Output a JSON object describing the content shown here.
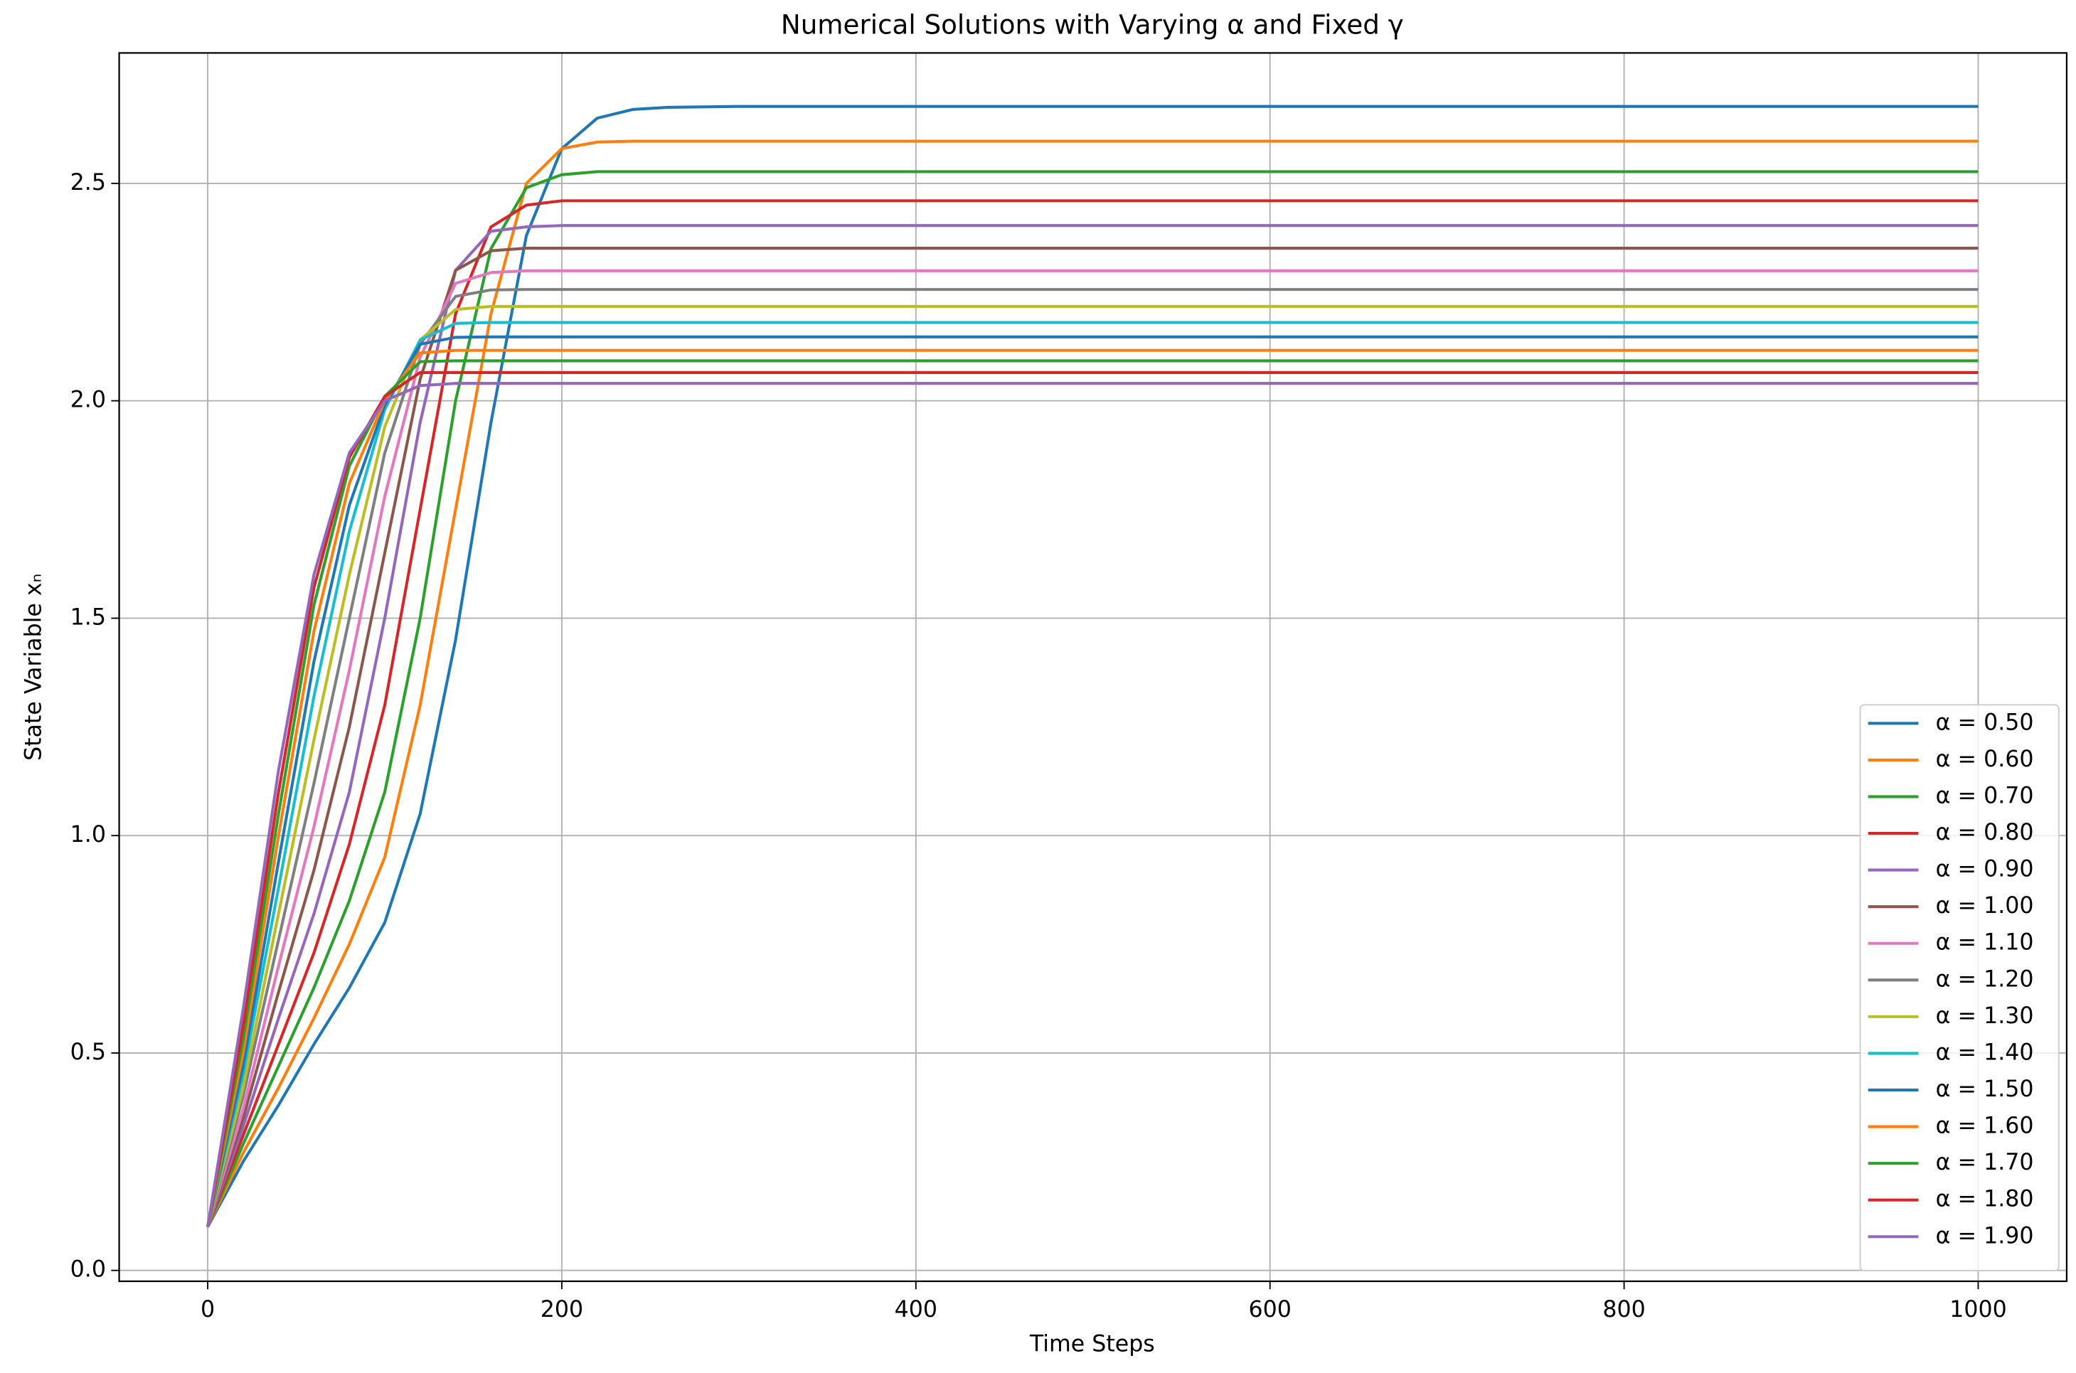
{
  "chart_data": {
    "type": "line",
    "title": "Numerical Solutions with Varying α and Fixed γ",
    "xlabel": "Time Steps",
    "ylabel": "State Variable xₙ",
    "x": [
      0,
      20,
      40,
      60,
      80,
      100,
      120,
      140,
      160,
      180,
      200,
      220,
      240,
      260,
      300,
      1000
    ],
    "series": [
      {
        "name": "α = 0.50",
        "color": "#1f77b4",
        "values": [
          0.1,
          0.25,
          0.38,
          0.52,
          0.65,
          0.8,
          1.05,
          1.45,
          1.95,
          2.38,
          2.58,
          2.65,
          2.67,
          2.675,
          2.677,
          2.677
        ]
      },
      {
        "name": "α = 0.60",
        "color": "#ff7f0e",
        "values": [
          0.1,
          0.27,
          0.42,
          0.58,
          0.75,
          0.95,
          1.3,
          1.75,
          2.2,
          2.5,
          2.58,
          2.595,
          2.597,
          2.597,
          2.597,
          2.597
        ]
      },
      {
        "name": "α = 0.70",
        "color": "#2ca02c",
        "values": [
          0.1,
          0.29,
          0.47,
          0.65,
          0.85,
          1.1,
          1.5,
          2.0,
          2.35,
          2.49,
          2.52,
          2.527,
          2.527,
          2.527,
          2.527,
          2.527
        ]
      },
      {
        "name": "α = 0.80",
        "color": "#d62728",
        "values": [
          0.1,
          0.31,
          0.52,
          0.73,
          0.98,
          1.3,
          1.75,
          2.2,
          2.4,
          2.45,
          2.46,
          2.46,
          2.46,
          2.46,
          2.46,
          2.46
        ]
      },
      {
        "name": "α = 0.90",
        "color": "#9467bd",
        "values": [
          0.1,
          0.33,
          0.58,
          0.82,
          1.1,
          1.5,
          1.95,
          2.3,
          2.39,
          2.4,
          2.403,
          2.403,
          2.403,
          2.403,
          2.403,
          2.403
        ]
      },
      {
        "name": "α = 1.00",
        "color": "#8c564b",
        "values": [
          0.1,
          0.35,
          0.64,
          0.92,
          1.25,
          1.65,
          2.05,
          2.3,
          2.345,
          2.351,
          2.351,
          2.351,
          2.351,
          2.351,
          2.351,
          2.351
        ]
      },
      {
        "name": "α = 1.10",
        "color": "#e377c2",
        "values": [
          0.1,
          0.37,
          0.7,
          1.02,
          1.38,
          1.78,
          2.1,
          2.27,
          2.295,
          2.299,
          2.299,
          2.299,
          2.299,
          2.299,
          2.299,
          2.299
        ]
      },
      {
        "name": "α = 1.20",
        "color": "#7f7f7f",
        "values": [
          0.1,
          0.4,
          0.76,
          1.12,
          1.5,
          1.88,
          2.13,
          2.24,
          2.255,
          2.256,
          2.256,
          2.256,
          2.256,
          2.256,
          2.256,
          2.256
        ]
      },
      {
        "name": "α = 1.30",
        "color": "#bcbd22",
        "values": [
          0.1,
          0.42,
          0.82,
          1.22,
          1.6,
          1.94,
          2.14,
          2.21,
          2.217,
          2.217,
          2.217,
          2.217,
          2.217,
          2.217,
          2.217,
          2.217
        ]
      },
      {
        "name": "α = 1.40",
        "color": "#17becf",
        "values": [
          0.1,
          0.45,
          0.88,
          1.32,
          1.7,
          1.98,
          2.14,
          2.178,
          2.18,
          2.18,
          2.18,
          2.18,
          2.18,
          2.18,
          2.18,
          2.18
        ]
      },
      {
        "name": "α = 1.50",
        "color": "#1f77b4",
        "values": [
          0.1,
          0.47,
          0.94,
          1.4,
          1.76,
          1.99,
          2.13,
          2.146,
          2.147,
          2.147,
          2.147,
          2.147,
          2.147,
          2.147,
          2.147,
          2.147
        ]
      },
      {
        "name": "α = 1.60",
        "color": "#ff7f0e",
        "values": [
          0.1,
          0.5,
          1.0,
          1.47,
          1.81,
          2.0,
          2.11,
          2.116,
          2.116,
          2.116,
          2.116,
          2.116,
          2.116,
          2.116,
          2.116,
          2.116
        ]
      },
      {
        "name": "α = 1.70",
        "color": "#2ca02c",
        "values": [
          0.1,
          0.53,
          1.05,
          1.53,
          1.85,
          2.01,
          2.09,
          2.092,
          2.092,
          2.092,
          2.092,
          2.092,
          2.092,
          2.092,
          2.092,
          2.092
        ]
      },
      {
        "name": "α = 1.80",
        "color": "#d62728",
        "values": [
          0.1,
          0.56,
          1.1,
          1.57,
          1.87,
          2.01,
          2.065,
          2.065,
          2.065,
          2.065,
          2.065,
          2.065,
          2.065,
          2.065,
          2.065,
          2.065
        ]
      },
      {
        "name": "α = 1.90",
        "color": "#9467bd",
        "values": [
          0.1,
          0.6,
          1.15,
          1.6,
          1.88,
          2.0,
          2.035,
          2.04,
          2.04,
          2.04,
          2.04,
          2.04,
          2.04,
          2.04,
          2.04,
          2.04
        ]
      }
    ],
    "xlim": [
      -50,
      1050
    ],
    "ylim": [
      -0.025,
      2.8
    ],
    "xticks": [
      0,
      200,
      400,
      600,
      800,
      1000
    ],
    "yticks": [
      {
        "value": 0,
        "label": "0.0"
      },
      0.5,
      {
        "value": 1,
        "label": "1.0"
      },
      1.5,
      {
        "value": 2,
        "label": "2.0"
      },
      2.5
    ],
    "grid": true,
    "legend": "lower right"
  }
}
